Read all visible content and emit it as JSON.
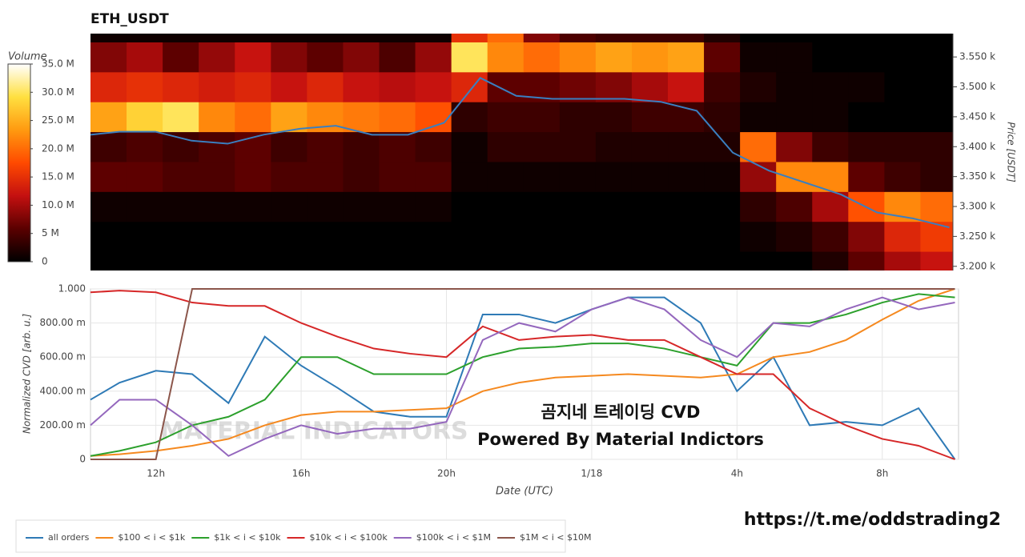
{
  "chart_data": [
    {
      "type": "heatmap",
      "title": "ETH_USDT",
      "ylabel": "Price [USDT]",
      "xlim": [
        10.2,
        34.1
      ],
      "ylim": [
        3193,
        3589
      ],
      "yticks": [
        {
          "value": 3200,
          "label": "3.200 k"
        },
        {
          "value": 3250,
          "label": "3.250 k"
        },
        {
          "value": 3300,
          "label": "3.300 k"
        },
        {
          "value": 3350,
          "label": "3.350 k"
        },
        {
          "value": 3400,
          "label": "3.400 k"
        },
        {
          "value": 3450,
          "label": "3.450 k"
        },
        {
          "value": 3500,
          "label": "3.500 k"
        },
        {
          "value": 3550,
          "label": "3.550 k"
        }
      ],
      "xbins": [
        10.2,
        11.2,
        12.2,
        13.2,
        14.2,
        15.2,
        16.2,
        17.2,
        18.2,
        19.2,
        20.2,
        21.2,
        22.2,
        23.2,
        24.2,
        25.2,
        26.2,
        27.2,
        28.2,
        29.2,
        30.2,
        31.2,
        32.2,
        33.2,
        34.2
      ],
      "ybins": [
        3175,
        3225,
        3275,
        3325,
        3375,
        3425,
        3475,
        3525,
        3575,
        3625
      ],
      "z": [
        [
          0,
          0,
          0,
          0,
          0,
          0,
          0,
          0,
          0,
          0,
          0,
          0,
          0,
          0,
          0,
          0,
          0,
          0,
          0,
          0,
          2,
          6,
          10,
          12
        ],
        [
          0,
          0,
          0,
          0,
          0,
          0,
          0,
          0,
          0,
          0,
          0,
          0,
          0,
          0,
          0,
          0,
          0,
          0,
          1,
          2,
          4,
          8,
          14,
          16
        ],
        [
          1,
          1,
          1,
          1,
          1,
          1,
          1,
          1,
          1,
          1,
          0,
          0,
          0,
          0,
          0,
          0,
          0,
          0,
          3,
          5,
          10,
          18,
          22,
          20
        ],
        [
          6,
          6,
          5,
          5,
          6,
          5,
          5,
          4,
          5,
          5,
          1,
          1,
          1,
          1,
          1,
          1,
          1,
          1,
          9,
          22,
          22,
          6,
          4,
          3
        ],
        [
          4,
          5,
          4,
          5,
          6,
          4,
          5,
          4,
          5,
          4,
          1,
          3,
          3,
          3,
          2,
          2,
          2,
          2,
          20,
          8,
          4,
          3,
          3,
          3
        ],
        [
          24,
          28,
          30,
          22,
          20,
          24,
          22,
          21,
          20,
          18,
          3,
          4,
          4,
          3,
          3,
          4,
          4,
          3,
          1,
          1,
          1,
          0,
          0,
          0
        ],
        [
          14,
          15,
          14,
          13,
          14,
          12,
          14,
          12,
          11,
          12,
          14,
          6,
          6,
          7,
          8,
          10,
          12,
          4,
          2,
          1,
          1,
          1,
          0,
          0
        ],
        [
          8,
          10,
          6,
          9,
          12,
          8,
          6,
          8,
          5,
          9,
          30,
          22,
          20,
          22,
          24,
          23,
          24,
          6,
          1,
          1,
          0,
          0,
          0,
          0
        ],
        [
          1,
          1,
          1,
          1,
          1,
          1,
          1,
          1,
          1,
          1,
          15,
          20,
          8,
          5,
          4,
          4,
          4,
          2,
          0,
          0,
          0,
          0,
          0,
          0
        ]
      ],
      "colorscale": [
        "#000000",
        "#5a0000",
        "#c41010",
        "#ff4a00",
        "#ff9a10",
        "#ffe040",
        "#ffffff"
      ],
      "colorbar": {
        "title": "Volume",
        "lim": [
          0,
          35
        ],
        "ticks": [
          0,
          {
            "value": 5,
            "label": "5 M"
          },
          {
            "value": 10,
            "label": "10.0 M"
          },
          {
            "value": 15,
            "label": "15.0 M"
          },
          {
            "value": 20,
            "label": "20.0 M"
          },
          {
            "value": 25,
            "label": "25.0 M"
          },
          {
            "value": 30,
            "label": "30.0 M"
          },
          {
            "value": 35,
            "label": "35.0 M"
          }
        ]
      },
      "x": [
        10.2,
        11,
        12,
        13,
        14,
        15,
        16,
        17,
        18,
        19,
        20,
        21,
        22,
        23,
        24,
        25,
        26,
        27,
        28,
        29,
        30,
        31,
        32,
        33,
        34
      ],
      "price": {
        "color": "#3a7fc0",
        "values": [
          3420,
          3425,
          3425,
          3410,
          3405,
          3420,
          3430,
          3435,
          3420,
          3420,
          3440,
          3515,
          3485,
          3480,
          3480,
          3480,
          3475,
          3460,
          3390,
          3360,
          3340,
          3320,
          3290,
          3280,
          3265
        ]
      }
    },
    {
      "type": "line",
      "xlabel": "Date (UTC)",
      "ylabel": "Normalized CVD [arb. u.]",
      "xlim": [
        10.2,
        34.1
      ],
      "ylim": [
        0,
        1
      ],
      "xticks": [
        {
          "value": 12,
          "label": "12h"
        },
        {
          "value": 16,
          "label": "16h"
        },
        {
          "value": 20,
          "label": "20h"
        },
        {
          "value": 24,
          "label": "1/18"
        },
        {
          "value": 28,
          "label": "4h"
        },
        {
          "value": 32,
          "label": "8h"
        }
      ],
      "yticks": [
        0,
        {
          "value": 0.2,
          "label": "200.00 m"
        },
        {
          "value": 0.4,
          "label": "400.00 m"
        },
        {
          "value": 0.6,
          "label": "600.00 m"
        },
        {
          "value": 0.8,
          "label": "800.00 m"
        },
        {
          "value": 1,
          "label": "1.000"
        }
      ],
      "grid": true,
      "x": [
        10.2,
        11,
        12,
        13,
        14,
        15,
        16,
        17,
        18,
        19,
        20,
        21,
        22,
        23,
        24,
        25,
        26,
        27,
        28,
        29,
        30,
        31,
        32,
        33,
        34
      ],
      "series": [
        {
          "name": "all orders",
          "color": "#2e7ab6",
          "values": [
            0.35,
            0.45,
            0.52,
            0.5,
            0.33,
            0.72,
            0.55,
            0.42,
            0.28,
            0.25,
            0.25,
            0.85,
            0.85,
            0.8,
            0.88,
            0.95,
            0.95,
            0.8,
            0.4,
            0.6,
            0.2,
            0.22,
            0.2,
            0.3,
            0.0
          ]
        },
        {
          "name": "$100 < i < $1k",
          "color": "#f5891f",
          "values": [
            0.02,
            0.03,
            0.05,
            0.08,
            0.12,
            0.2,
            0.26,
            0.28,
            0.28,
            0.29,
            0.3,
            0.4,
            0.45,
            0.48,
            0.49,
            0.5,
            0.49,
            0.48,
            0.5,
            0.6,
            0.63,
            0.7,
            0.82,
            0.93,
            1.0
          ]
        },
        {
          "name": "$1k < i < $10k",
          "color": "#2ca02c",
          "values": [
            0.02,
            0.05,
            0.1,
            0.2,
            0.25,
            0.35,
            0.6,
            0.6,
            0.5,
            0.5,
            0.5,
            0.6,
            0.65,
            0.66,
            0.68,
            0.68,
            0.65,
            0.6,
            0.55,
            0.8,
            0.8,
            0.85,
            0.92,
            0.97,
            0.95
          ]
        },
        {
          "name": "$10k < i < $100k",
          "color": "#d62728",
          "values": [
            0.98,
            0.99,
            0.98,
            0.92,
            0.9,
            0.9,
            0.8,
            0.72,
            0.65,
            0.62,
            0.6,
            0.78,
            0.7,
            0.72,
            0.73,
            0.7,
            0.7,
            0.6,
            0.5,
            0.5,
            0.3,
            0.2,
            0.12,
            0.08,
            0.0
          ]
        },
        {
          "name": "$100k < i < $1M",
          "color": "#9467bd",
          "values": [
            0.2,
            0.35,
            0.35,
            0.2,
            0.02,
            0.12,
            0.2,
            0.15,
            0.18,
            0.18,
            0.22,
            0.7,
            0.8,
            0.75,
            0.88,
            0.95,
            0.88,
            0.7,
            0.6,
            0.8,
            0.78,
            0.88,
            0.95,
            0.88,
            0.92
          ]
        },
        {
          "name": "$1M < i < $10M",
          "color": "#8c564b",
          "values": [
            0,
            0,
            0,
            1,
            1,
            1,
            1,
            1,
            1,
            1,
            1,
            1,
            1,
            1,
            1,
            1,
            1,
            1,
            1,
            1,
            1,
            1,
            1,
            1,
            1
          ]
        }
      ],
      "annotations": [
        "곰지네 트레이딩 CVD",
        "Powered By Material Indictors"
      ],
      "watermark": "MATERIAL INDICATORS"
    }
  ],
  "footer_link": "https://t.me/oddstrading2"
}
